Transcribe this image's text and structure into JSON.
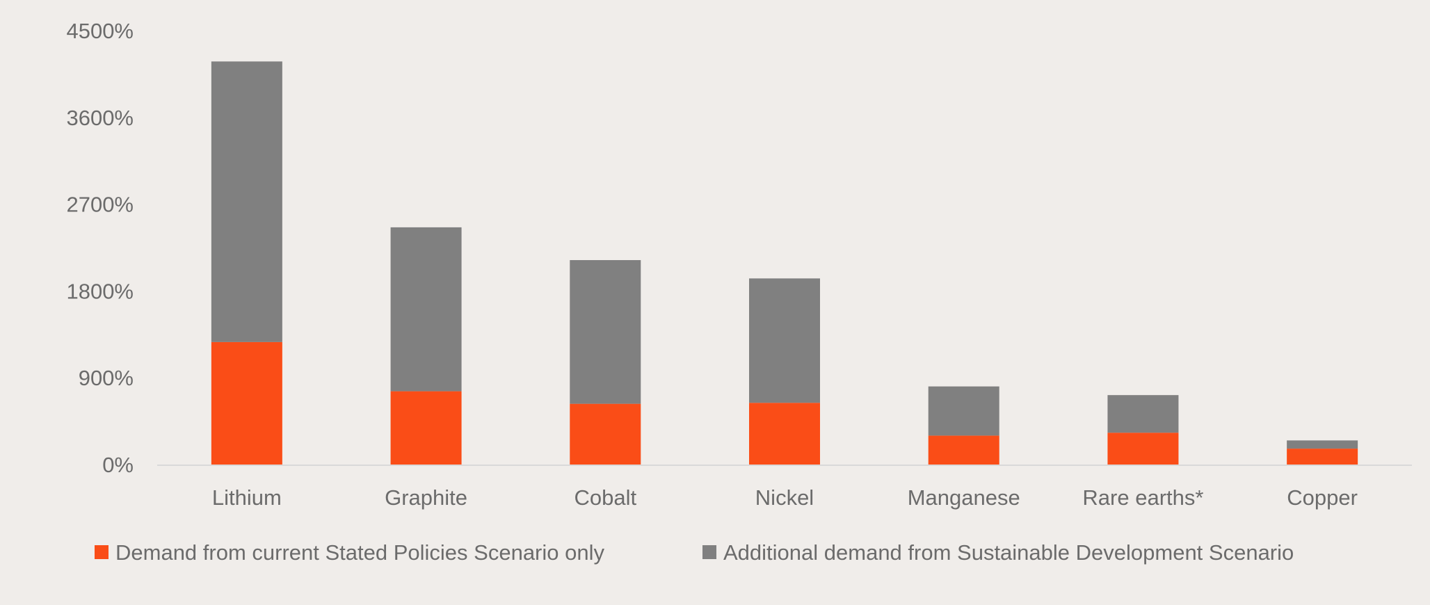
{
  "chart_data": {
    "type": "bar",
    "stacked": true,
    "title": "",
    "xlabel": "",
    "ylabel": "",
    "ylim": [
      0,
      4500
    ],
    "y_ticks": [
      0,
      900,
      1800,
      2700,
      3600,
      4500
    ],
    "y_tick_labels": [
      "0%",
      "900%",
      "1800%",
      "2700%",
      "3600%",
      "4500%"
    ],
    "y_unit": "%",
    "grid": false,
    "legend_position": "bottom",
    "categories": [
      "Lithium",
      "Graphite",
      "Cobalt",
      "Nickel",
      "Manganese",
      "Rare earths*",
      "Copper"
    ],
    "series": [
      {
        "name": "Demand from current Stated Policies Scenario only",
        "color": "#fa4d17",
        "values": [
          1270,
          760,
          630,
          640,
          300,
          330,
          165
        ]
      },
      {
        "name": "Additional demand from Sustainable Development Scenario",
        "color": "#808080",
        "values": [
          2910,
          1700,
          1490,
          1290,
          510,
          390,
          85
        ]
      }
    ]
  },
  "colors": {
    "background": "#f0edea",
    "axis_line": "#d9d9d9",
    "text": "#6b6b6b"
  }
}
